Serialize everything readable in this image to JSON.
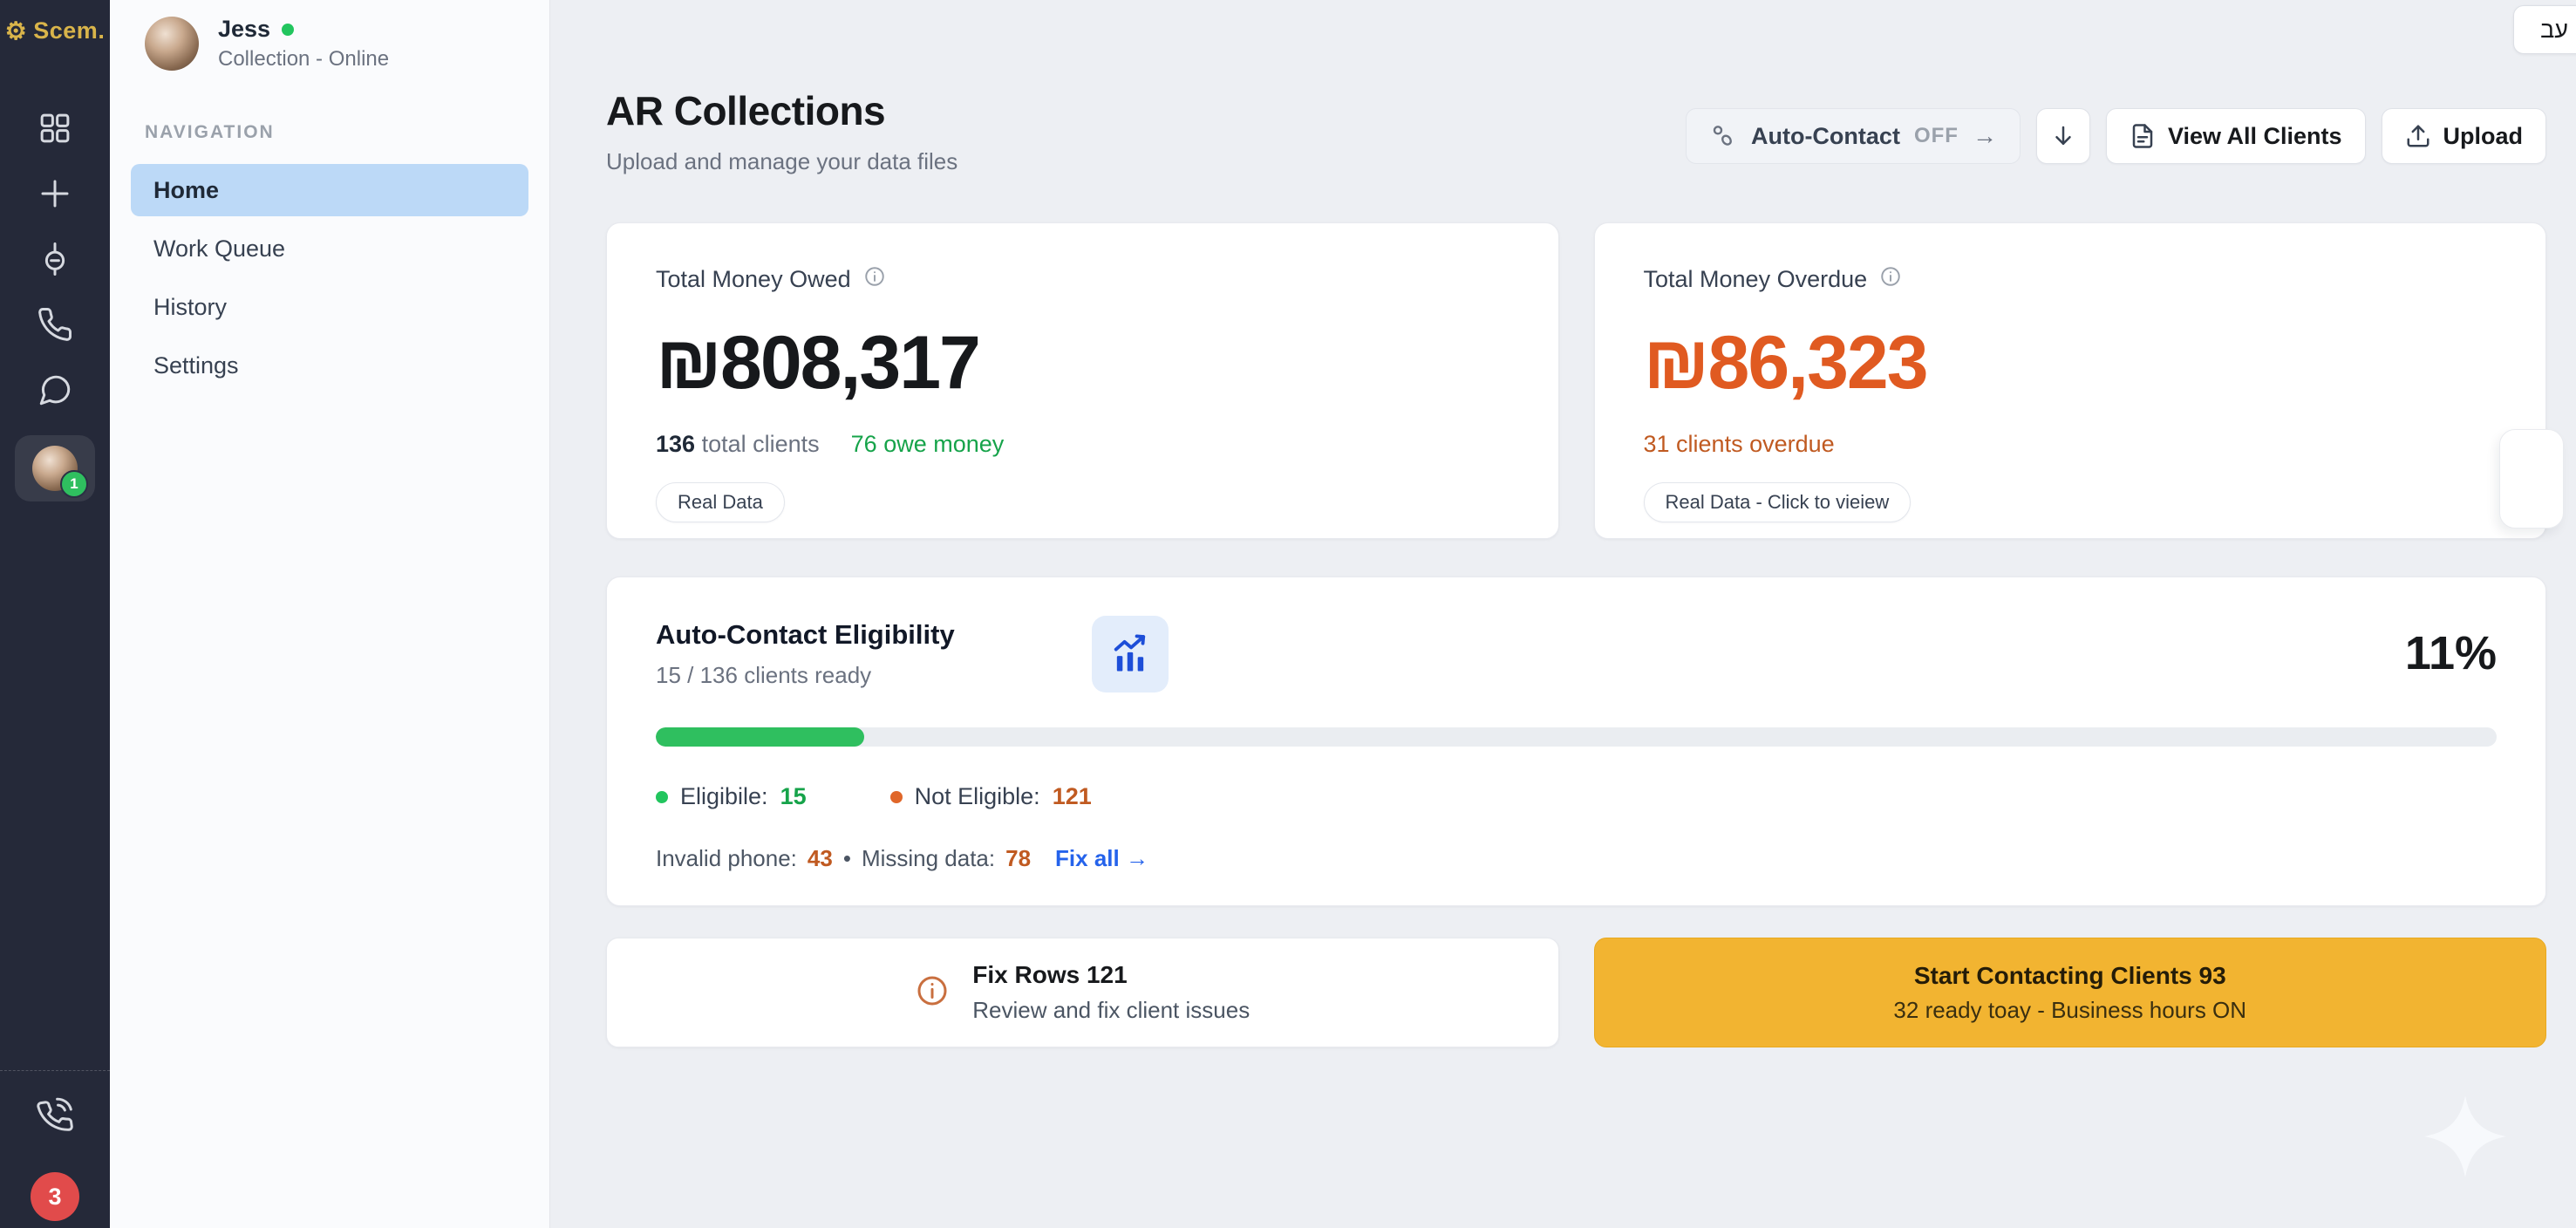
{
  "brand": {
    "logo_text": "Scem."
  },
  "rail": {
    "icons": [
      "grid-icon",
      "plus-icon",
      "plug-icon",
      "phone-icon",
      "chat-icon"
    ],
    "avatar_badge": "1",
    "bottom_icon": "phone-volume-icon",
    "red_badge": "3"
  },
  "profile": {
    "name": "Jess",
    "status": "Collection - Online"
  },
  "nav": {
    "section_label": "NAVIGATION",
    "items": [
      {
        "label": "Home",
        "active": true
      },
      {
        "label": "Work Queue",
        "active": false
      },
      {
        "label": "History",
        "active": false
      },
      {
        "label": "Settings",
        "active": false
      }
    ]
  },
  "header": {
    "title": "AR Collections",
    "subtitle": "Upload and manage your data files",
    "auto_contact_label": "Auto-Contact",
    "auto_contact_state": "OFF",
    "auto_contact_arrow": "→",
    "view_all_label": "View All Clients",
    "upload_label": "Upload",
    "lang_chip": "עב"
  },
  "cards": {
    "owed": {
      "title": "Total Money Owed",
      "currency": "₪",
      "amount": "808,317",
      "clients_count": "136",
      "clients_suffix": "total clients",
      "owe_text": "76 owe money",
      "badge": "Real Data"
    },
    "overdue": {
      "title": "Total Money Overdue",
      "currency": "₪",
      "amount": "86,323",
      "subtext": "31 clients overdue",
      "badge": "Real Data - Click to vieiew"
    }
  },
  "eligibility": {
    "title": "Auto-Contact Eligibility",
    "subtitle": "15 / 136 clients ready",
    "percent": "11%",
    "progress_pct": 11.3,
    "eligible_label": "Eligibile:",
    "eligible_value": "15",
    "not_eligible_label": "Not Eligible:",
    "not_eligible_value": "121",
    "invalid_phone_label": "Invalid phone:",
    "invalid_phone_value": "43",
    "separator": "•",
    "missing_data_label": "Missing data:",
    "missing_data_value": "78",
    "fix_all_label": "Fix all →"
  },
  "actions": {
    "fix_rows": {
      "title": "Fix Rows 121",
      "subtitle": "Review and fix client issues"
    },
    "start_contacting": {
      "title": "Start Contacting Clients 93",
      "subtitle": "32 ready toay - Business hours ON"
    }
  },
  "colors": {
    "rail_bg": "#252939",
    "active_nav": "#bcd9f7",
    "green": "#22c55e",
    "green_text": "#16a34a",
    "orange_amount": "#e05a21",
    "orange_text": "#c05a21",
    "amber_button": "#f2b431",
    "blue_link": "#2563eb",
    "red_badge": "#e14b4b"
  }
}
